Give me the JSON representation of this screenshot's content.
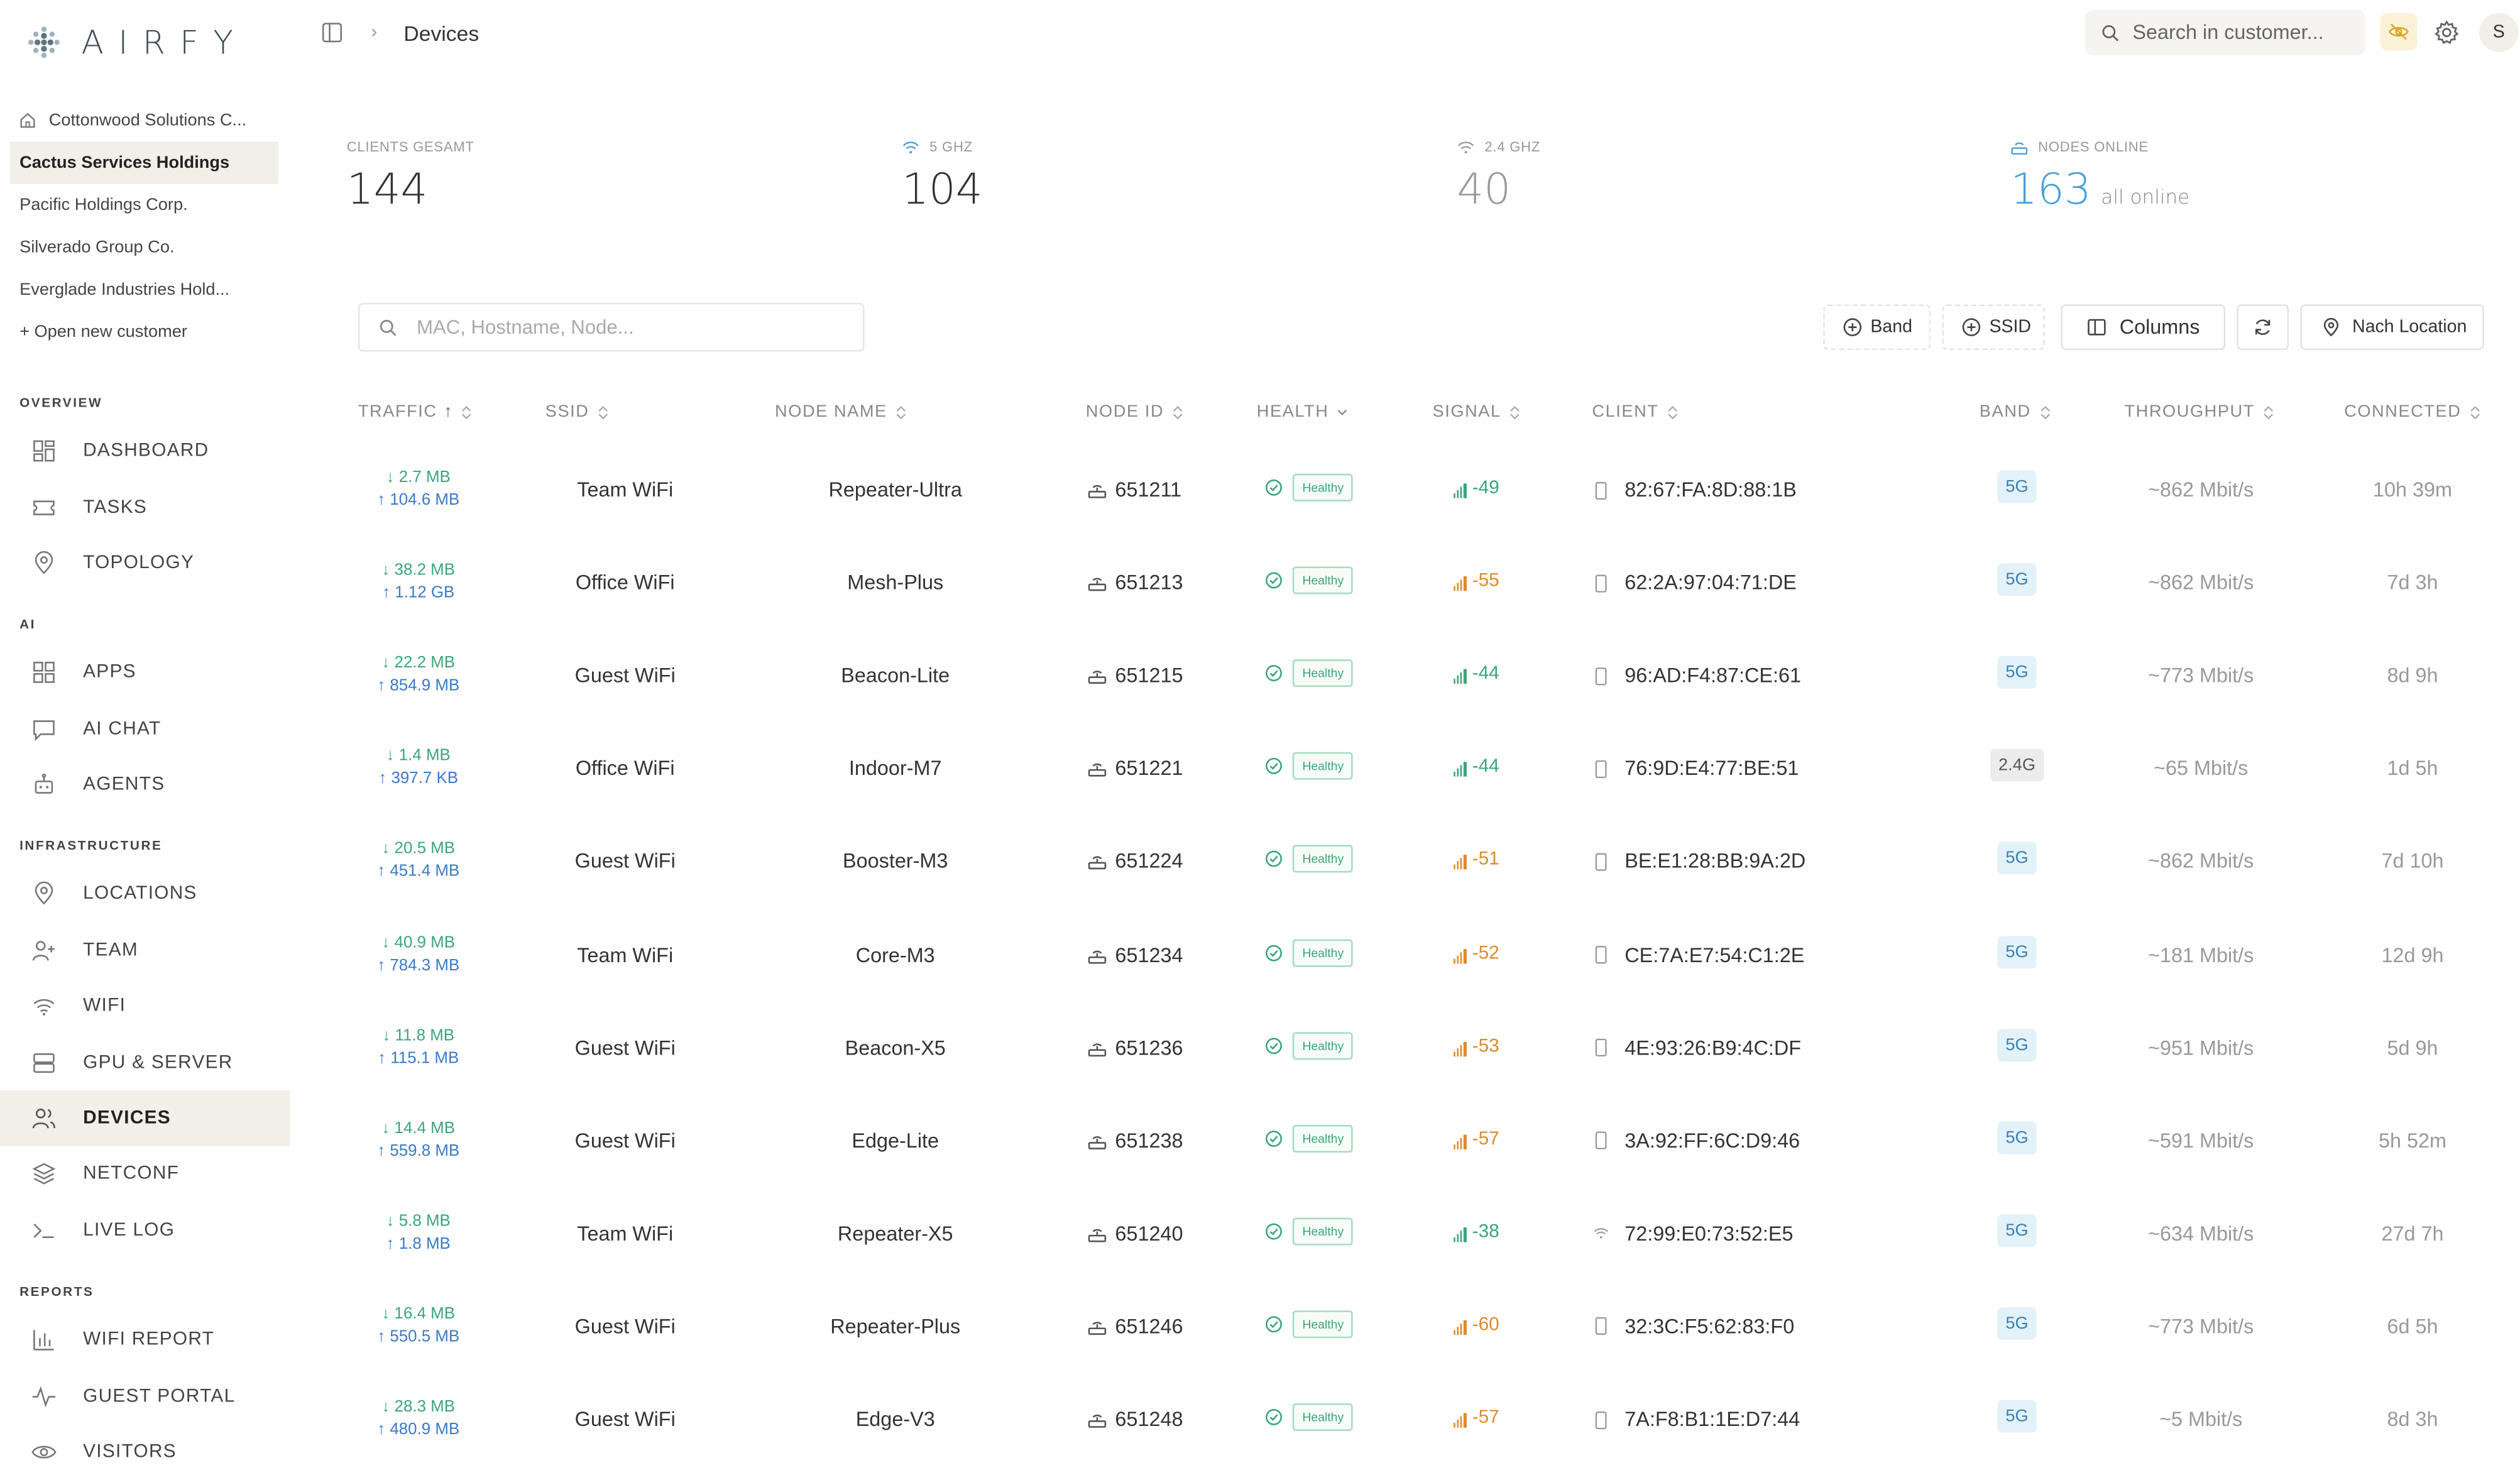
{
  "app": {
    "name": "AIRFY"
  },
  "sidebar": {
    "customers": [
      {
        "label": "Cottonwood Solutions C...",
        "icon": "home-icon",
        "active": false
      },
      {
        "label": "Cactus Services Holdings",
        "active": true
      },
      {
        "label": "Pacific Holdings Corp.",
        "active": false
      },
      {
        "label": "Silverado Group Co.",
        "active": false
      },
      {
        "label": "Everglade Industries Hold...",
        "active": false
      },
      {
        "label": "+ Open new customer",
        "active": false
      }
    ],
    "sections": {
      "overview": "OVERVIEW",
      "ai": "AI",
      "infrastructure": "INFRASTRUCTURE",
      "reports": "REPORTS"
    },
    "items": {
      "dashboard": "DASHBOARD",
      "tasks": "TASKS",
      "topology": "TOPOLOGY",
      "apps": "APPS",
      "ai_chat": "AI CHAT",
      "agents": "AGENTS",
      "locations": "LOCATIONS",
      "team": "TEAM",
      "wifi": "WIFI",
      "gpu_server": "GPU & SERVER",
      "devices": "DEVICES",
      "netconf": "NETCONF",
      "live_log": "LIVE LOG",
      "wifi_report": "WIFI REPORT",
      "guest_portal": "GUEST PORTAL",
      "visitors": "VISITORS"
    },
    "active_item": "devices"
  },
  "topbar": {
    "breadcrumb": "Devices",
    "search_placeholder": "Search in customer...",
    "avatar_initial": "S"
  },
  "stats": {
    "clients": {
      "label": "CLIENTS GESAMT",
      "value": "144"
    },
    "ghz5": {
      "label": "5 GHZ",
      "value": "104"
    },
    "ghz24": {
      "label": "2.4 GHZ",
      "value": "40"
    },
    "nodes": {
      "label": "NODES ONLINE",
      "value": "163",
      "sub": "all online"
    }
  },
  "filters": {
    "search_placeholder": "MAC, Hostname, Node...",
    "band": "Band",
    "ssid": "SSID",
    "columns": "Columns",
    "location": "Nach Location"
  },
  "table": {
    "headers": {
      "traffic": "TRAFFIC",
      "ssid": "SSID",
      "node_name": "NODE NAME",
      "node_id": "NODE ID",
      "health": "HEALTH",
      "signal": "SIGNAL",
      "client": "CLIENT",
      "band": "BAND",
      "throughput": "THROUGHPUT",
      "connected": "CONNECTED"
    },
    "rows": [
      {
        "down": "↓ 2.7 MB",
        "up": "↑ 104.6 MB",
        "ssid": "Team WiFi",
        "node": "Repeater-Ultra",
        "node_id": "651211",
        "health": "Healthy",
        "signal": "-49",
        "signal_color": "#3aa67a",
        "client_icon": "phone-icon",
        "client": "82:67:FA:8D:88:1B",
        "band": "5G",
        "throughput": "~862 Mbit/s",
        "connected": "10h 39m"
      },
      {
        "down": "↓ 38.2 MB",
        "up": "↑ 1.12 GB",
        "ssid": "Office WiFi",
        "node": "Mesh-Plus",
        "node_id": "651213",
        "health": "Healthy",
        "signal": "-55",
        "signal_color": "#e08a2a",
        "client_icon": "phone-icon",
        "client": "62:2A:97:04:71:DE",
        "band": "5G",
        "throughput": "~862 Mbit/s",
        "connected": "7d 3h"
      },
      {
        "down": "↓ 22.2 MB",
        "up": "↑ 854.9 MB",
        "ssid": "Guest WiFi",
        "node": "Beacon-Lite",
        "node_id": "651215",
        "health": "Healthy",
        "signal": "-44",
        "signal_color": "#3aa67a",
        "client_icon": "phone-icon",
        "client": "96:AD:F4:87:CE:61",
        "band": "5G",
        "throughput": "~773 Mbit/s",
        "connected": "8d 9h"
      },
      {
        "down": "↓ 1.4 MB",
        "up": "↑ 397.7 KB",
        "ssid": "Office WiFi",
        "node": "Indoor-M7",
        "node_id": "651221",
        "health": "Healthy",
        "signal": "-44",
        "signal_color": "#3aa67a",
        "client_icon": "phone-icon",
        "client": "76:9D:E4:77:BE:51",
        "band": "2.4G",
        "throughput": "~65 Mbit/s",
        "connected": "1d 5h"
      },
      {
        "down": "↓ 20.5 MB",
        "up": "↑ 451.4 MB",
        "ssid": "Guest WiFi",
        "node": "Booster-M3",
        "node_id": "651224",
        "health": "Healthy",
        "signal": "-51",
        "signal_color": "#e08a2a",
        "client_icon": "phone-icon",
        "client": "BE:E1:28:BB:9A:2D",
        "band": "5G",
        "throughput": "~862 Mbit/s",
        "connected": "7d 10h"
      },
      {
        "down": "↓ 40.9 MB",
        "up": "↑ 784.3 MB",
        "ssid": "Team WiFi",
        "node": "Core-M3",
        "node_id": "651234",
        "health": "Healthy",
        "signal": "-52",
        "signal_color": "#e08a2a",
        "client_icon": "phone-icon",
        "client": "CE:7A:E7:54:C1:2E",
        "band": "5G",
        "throughput": "~181 Mbit/s",
        "connected": "12d 9h"
      },
      {
        "down": "↓ 11.8 MB",
        "up": "↑ 115.1 MB",
        "ssid": "Guest WiFi",
        "node": "Beacon-X5",
        "node_id": "651236",
        "health": "Healthy",
        "signal": "-53",
        "signal_color": "#e08a2a",
        "client_icon": "phone-icon",
        "client": "4E:93:26:B9:4C:DF",
        "band": "5G",
        "throughput": "~951 Mbit/s",
        "connected": "5d 9h"
      },
      {
        "down": "↓ 14.4 MB",
        "up": "↑ 559.8 MB",
        "ssid": "Guest WiFi",
        "node": "Edge-Lite",
        "node_id": "651238",
        "health": "Healthy",
        "signal": "-57",
        "signal_color": "#e08a2a",
        "client_icon": "phone-icon",
        "client": "3A:92:FF:6C:D9:46",
        "band": "5G",
        "throughput": "~591 Mbit/s",
        "connected": "5h 52m"
      },
      {
        "down": "↓ 5.8 MB",
        "up": "↑ 1.8 MB",
        "ssid": "Team WiFi",
        "node": "Repeater-X5",
        "node_id": "651240",
        "health": "Healthy",
        "signal": "-38",
        "signal_color": "#3aa67a",
        "client_icon": "wifi-icon",
        "client": "72:99:E0:73:52:E5",
        "band": "5G",
        "throughput": "~634 Mbit/s",
        "connected": "27d 7h"
      },
      {
        "down": "↓ 16.4 MB",
        "up": "↑ 550.5 MB",
        "ssid": "Guest WiFi",
        "node": "Repeater-Plus",
        "node_id": "651246",
        "health": "Healthy",
        "signal": "-60",
        "signal_color": "#e08a2a",
        "client_icon": "phone-icon",
        "client": "32:3C:F5:62:83:F0",
        "band": "5G",
        "throughput": "~773 Mbit/s",
        "connected": "6d 5h"
      },
      {
        "down": "↓ 28.3 MB",
        "up": "↑ 480.9 MB",
        "ssid": "Guest WiFi",
        "node": "Edge-V3",
        "node_id": "651248",
        "health": "Healthy",
        "signal": "-57",
        "signal_color": "#e08a2a",
        "client_icon": "phone-icon",
        "client": "7A:F8:B1:1E:D7:44",
        "band": "5G",
        "throughput": "~5 Mbit/s",
        "connected": "8d 3h"
      }
    ]
  },
  "colors": {
    "accent_blue": "#4a9fd8",
    "green": "#3aa67a",
    "orange": "#e08a2a",
    "active_bg": "#f1efe7"
  }
}
